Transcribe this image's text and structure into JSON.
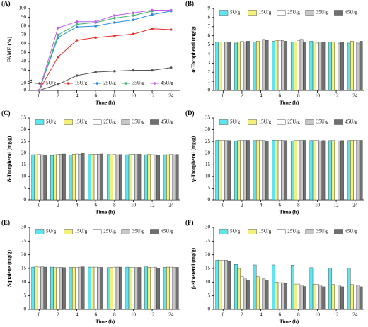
{
  "chart_data": [
    {
      "type": "line",
      "panel": "(A)",
      "ylabel": "FAME (%)",
      "xlabel": "Time (h)",
      "categories": [
        "0",
        "2",
        "4",
        "6",
        "8",
        "10",
        "12",
        "24"
      ],
      "ylim": [
        0,
        100
      ],
      "yticks": [
        0,
        20,
        30,
        40,
        50,
        60,
        70,
        80,
        90,
        100
      ],
      "axis_break": [
        0,
        20
      ],
      "legend": "bottom",
      "series": [
        {
          "name": "5U/g",
          "color": "#555555",
          "values": [
            0,
            17,
            24,
            28,
            29,
            30,
            30,
            33
          ]
        },
        {
          "name": "15U/g",
          "color": "#e8302a",
          "values": [
            0,
            45,
            64,
            67,
            69,
            71,
            77,
            76
          ]
        },
        {
          "name": "25U/g",
          "color": "#2a8de0",
          "values": [
            0,
            67,
            79,
            80,
            84,
            87,
            93,
            97
          ]
        },
        {
          "name": "35U/g",
          "color": "#3cb56b",
          "values": [
            0,
            70,
            82,
            84,
            89,
            92,
            97,
            98
          ]
        },
        {
          "name": "45U/g",
          "color": "#c05ce8",
          "values": [
            0,
            78,
            85,
            85,
            92,
            95,
            98,
            98
          ]
        }
      ]
    },
    {
      "type": "bar",
      "panel": "(B)",
      "ylabel": "α-Tocopherol (mg/g)",
      "xlabel": "Time (h)",
      "categories": [
        "0",
        "2",
        "4",
        "6",
        "8",
        "10",
        "12",
        "24"
      ],
      "ylim": [
        0,
        9
      ],
      "yticks": [
        0,
        1,
        2,
        3,
        4,
        5,
        6,
        7,
        8,
        9
      ],
      "legend": "top",
      "series": [
        {
          "name": "5U/g",
          "color": "#5ee6f0",
          "values": [
            5.3,
            5.2,
            5.3,
            5.4,
            5.3,
            5.4,
            5.3,
            5.2
          ]
        },
        {
          "name": "15U/g",
          "color": "#f4f07a",
          "values": [
            5.3,
            5.3,
            5.4,
            5.5,
            5.3,
            5.3,
            5.3,
            5.4
          ]
        },
        {
          "name": "25U/g",
          "color": "#ffffff",
          "values": [
            5.3,
            5.4,
            5.3,
            5.5,
            5.5,
            5.2,
            5.3,
            5.3
          ]
        },
        {
          "name": "35U/g",
          "color": "#c8c8c8",
          "values": [
            5.3,
            5.3,
            5.6,
            5.5,
            5.6,
            5.3,
            5.2,
            5.2
          ]
        },
        {
          "name": "45U/g",
          "color": "#707070",
          "values": [
            5.3,
            5.4,
            5.5,
            5.4,
            5.3,
            5.3,
            5.3,
            5.4
          ]
        }
      ]
    },
    {
      "type": "bar",
      "panel": "(C)",
      "ylabel": "δ-Tocopherol (mg/g)",
      "xlabel": "Time (h)",
      "categories": [
        "0",
        "2",
        "4",
        "6",
        "8",
        "10",
        "12",
        "24"
      ],
      "ylim": [
        0,
        35
      ],
      "yticks": [
        0,
        5,
        10,
        15,
        20,
        25,
        30,
        35
      ],
      "legend": "top",
      "series": [
        {
          "name": "5U/g",
          "color": "#5ee6f0",
          "values": [
            19.3,
            19,
            19.2,
            19.4,
            19.4,
            19.3,
            19.3,
            19.3
          ]
        },
        {
          "name": "15U/g",
          "color": "#f4f07a",
          "values": [
            19.3,
            19.3,
            19.5,
            19.5,
            19.3,
            19.4,
            19.4,
            19.3
          ]
        },
        {
          "name": "25U/g",
          "color": "#ffffff",
          "values": [
            19.4,
            19.4,
            19.6,
            19.5,
            19.4,
            19.5,
            19.3,
            19.4
          ]
        },
        {
          "name": "35U/g",
          "color": "#c8c8c8",
          "values": [
            19.3,
            19.5,
            19.5,
            19.5,
            19.3,
            19.4,
            19.3,
            19.3
          ]
        },
        {
          "name": "45U/g",
          "color": "#707070",
          "values": [
            19.2,
            19.6,
            19.8,
            19.6,
            19.4,
            19.5,
            19.2,
            19.4
          ]
        }
      ]
    },
    {
      "type": "bar",
      "panel": "(D)",
      "ylabel": "γ-Tocopherol (mg/g)",
      "xlabel": "Time (h)",
      "categories": [
        "0",
        "2",
        "4",
        "6",
        "8",
        "10",
        "12",
        "24"
      ],
      "ylim": [
        0,
        35
      ],
      "yticks": [
        0,
        5,
        10,
        15,
        20,
        25,
        30,
        35
      ],
      "legend": "top",
      "series": [
        {
          "name": "5U/g",
          "color": "#5ee6f0",
          "values": [
            25.5,
            25.3,
            25.4,
            25.6,
            25.3,
            25.4,
            25.4,
            25.4
          ]
        },
        {
          "name": "15U/g",
          "color": "#f4f07a",
          "values": [
            25.5,
            25.4,
            25.5,
            25.5,
            25.4,
            25.4,
            25.4,
            25.5
          ]
        },
        {
          "name": "25U/g",
          "color": "#ffffff",
          "values": [
            25.5,
            25.5,
            25.4,
            25.5,
            25.5,
            25.5,
            25.3,
            25.5
          ]
        },
        {
          "name": "35U/g",
          "color": "#c8c8c8",
          "values": [
            25.4,
            25.5,
            25.4,
            25.5,
            25.5,
            25.3,
            25.3,
            25.4
          ]
        },
        {
          "name": "45U/g",
          "color": "#707070",
          "values": [
            25.4,
            25.5,
            25.3,
            25.4,
            25.5,
            25.4,
            25.4,
            25.5
          ]
        }
      ]
    },
    {
      "type": "bar",
      "panel": "(E)",
      "ylabel": "Squalene (mg/g)",
      "xlabel": "Time (h)",
      "categories": [
        "0",
        "2",
        "4",
        "6",
        "8",
        "10",
        "12",
        "24"
      ],
      "ylim": [
        0,
        30
      ],
      "yticks": [
        0,
        5,
        10,
        15,
        20,
        25,
        30
      ],
      "legend": "top",
      "series": [
        {
          "name": "5U/g",
          "color": "#5ee6f0",
          "values": [
            15.5,
            15.5,
            15.4,
            15.5,
            15.3,
            15.5,
            15.6,
            15.4
          ]
        },
        {
          "name": "15U/g",
          "color": "#f4f07a",
          "values": [
            15.6,
            15.3,
            15.4,
            15.5,
            15.4,
            15.4,
            15.4,
            15.5
          ]
        },
        {
          "name": "25U/g",
          "color": "#ffffff",
          "values": [
            15.5,
            15.4,
            15.3,
            15.5,
            15.5,
            15.4,
            15.3,
            15.5
          ]
        },
        {
          "name": "35U/g",
          "color": "#c8c8c8",
          "values": [
            15.6,
            15.4,
            15.5,
            15.4,
            15.5,
            15.3,
            15.5,
            15.4
          ]
        },
        {
          "name": "45U/g",
          "color": "#707070",
          "values": [
            15.5,
            15.3,
            15.6,
            15.4,
            15.5,
            15.4,
            15.2,
            15.4
          ]
        }
      ]
    },
    {
      "type": "bar",
      "panel": "(F)",
      "ylabel": "β-sitosterol (mg/g)",
      "xlabel": "Time (h)",
      "categories": [
        "0",
        "2",
        "4",
        "6",
        "8",
        "10",
        "12",
        "24"
      ],
      "ylim": [
        0,
        30
      ],
      "yticks": [
        0,
        5,
        10,
        15,
        20,
        25,
        30
      ],
      "legend": "top",
      "series": [
        {
          "name": "5U/g",
          "color": "#5ee6f0",
          "values": [
            18,
            16.5,
            16.3,
            16.3,
            16.2,
            15.3,
            15.1,
            15.1
          ]
        },
        {
          "name": "15U/g",
          "color": "#f4f07a",
          "values": [
            18,
            15,
            12,
            10,
            9.3,
            9.2,
            9.1,
            9.1
          ]
        },
        {
          "name": "25U/g",
          "color": "#ffffff",
          "values": [
            18,
            12,
            11.5,
            9.8,
            9.3,
            9.2,
            9,
            9
          ]
        },
        {
          "name": "35U/g",
          "color": "#c8c8c8",
          "values": [
            18,
            11.5,
            11.2,
            9.8,
            9,
            9,
            9,
            9
          ]
        },
        {
          "name": "45U/g",
          "color": "#707070",
          "values": [
            17.5,
            10.5,
            10.5,
            9.5,
            8.4,
            8.3,
            8.3,
            8.3
          ]
        }
      ]
    }
  ]
}
